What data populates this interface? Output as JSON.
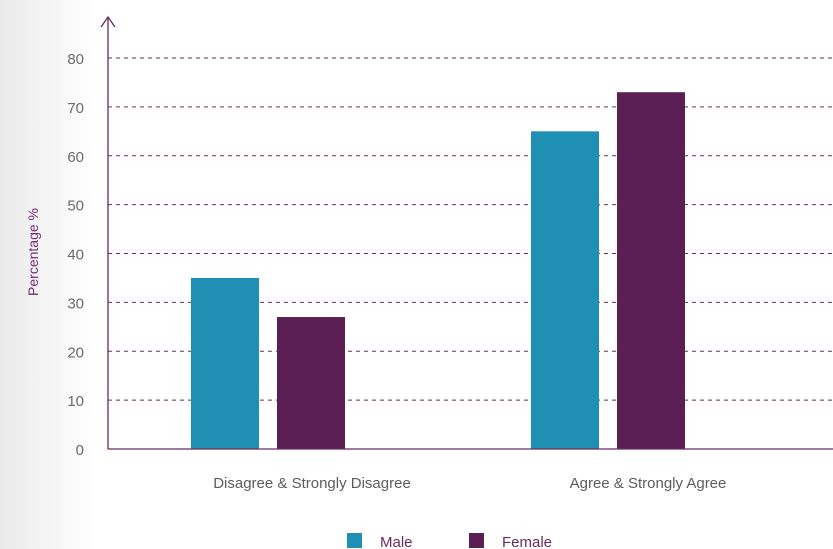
{
  "chart_data": {
    "type": "bar",
    "categories": [
      "Disagree & Strongly Disagree",
      "Agree & Strongly Agree"
    ],
    "series": [
      {
        "name": "Male",
        "values": [
          35,
          65
        ],
        "color": "#1f8fb4"
      },
      {
        "name": "Female",
        "values": [
          27,
          73
        ],
        "color": "#5c1f53"
      }
    ],
    "title": "",
    "xlabel": "",
    "ylabel": "Percentage %",
    "ylim": [
      0,
      80
    ],
    "yticks": [
      0,
      10,
      20,
      30,
      40,
      50,
      60,
      70,
      80
    ],
    "grid": true,
    "legend_position": "bottom-center"
  },
  "colors": {
    "axis": "#6b2a5f",
    "grid": "#6b2a5f"
  }
}
